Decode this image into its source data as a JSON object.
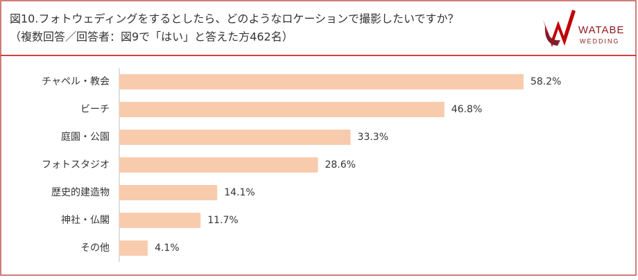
{
  "chart_data": {
    "type": "bar",
    "orientation": "horizontal",
    "title": "図10.フォトウェディングをするとしたら、どのようなロケーションで撮影したいですか？",
    "subtitle": "（複数回答／回答者：図9で「はい」と答えた方462名）",
    "logo": {
      "line1": "WATABE",
      "line2": "WEDDING"
    },
    "categories": [
      "チャペル・教会",
      "ビーチ",
      "庭園・公園",
      "フォトスタジオ",
      "歴史的建造物",
      "神社・仏閣",
      "その他"
    ],
    "values": [
      58.2,
      46.8,
      33.3,
      28.6,
      14.1,
      11.7,
      4.1
    ],
    "value_labels": [
      "58.2%",
      "46.8%",
      "33.3%",
      "28.6%",
      "14.1%",
      "11.7%",
      "4.1%"
    ],
    "color": "#f8cbad",
    "xlim": [
      0,
      60
    ]
  }
}
